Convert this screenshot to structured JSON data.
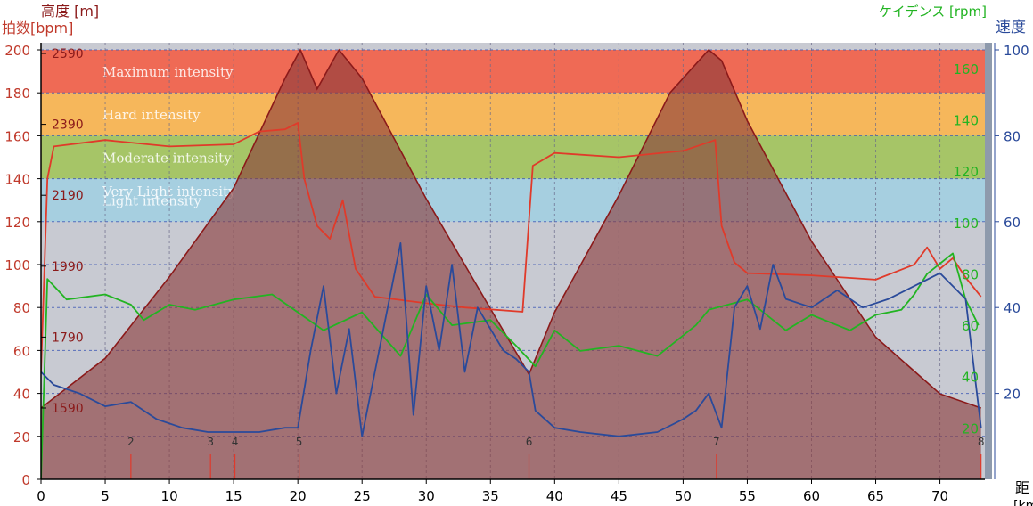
{
  "chart_data": {
    "type": "area",
    "axes": {
      "hr": {
        "label": "拍数[bpm]",
        "color": "#c0392b",
        "ticks": [
          0,
          20,
          40,
          60,
          80,
          100,
          120,
          140,
          160,
          180,
          200
        ],
        "range": [
          0,
          200
        ]
      },
      "alt": {
        "label": "高度 [m]",
        "color": "#8b1a1a",
        "ticks": [
          1590,
          1790,
          1990,
          2190,
          2390,
          2590
        ]
      },
      "cad": {
        "label": "ケイデンス [rpm]",
        "color": "#22b422",
        "ticks": [
          20,
          40,
          60,
          80,
          100,
          120,
          140,
          160
        ],
        "range": [
          0,
          170
        ]
      },
      "spd": {
        "label": "速度",
        "color": "#2a4a9a",
        "ticks": [
          20,
          40,
          60,
          80,
          100
        ],
        "range": [
          0,
          100
        ]
      },
      "dist": {
        "label": "距",
        "label2": "[km]",
        "ticks": [
          0,
          5,
          10,
          15,
          20,
          25,
          30,
          35,
          40,
          45,
          50,
          55,
          60,
          65,
          70
        ],
        "range": [
          0,
          73.5
        ]
      }
    },
    "zones": [
      {
        "name": "Maximum intensity",
        "from": 180,
        "to": 200,
        "color": "#ef6a55"
      },
      {
        "name": "Hard intensity",
        "from": 160,
        "to": 180,
        "color": "#f6b75b"
      },
      {
        "name": "Moderate intensity",
        "from": 140,
        "to": 160,
        "color": "#a6c567"
      },
      {
        "name": "Light intensity",
        "from": 120,
        "to": 140,
        "color": "#a6cfe0"
      },
      {
        "name": "Very Light intensity",
        "from": 0,
        "to": 120,
        "color": "#c8cad2"
      }
    ],
    "markers": [
      {
        "label": "2",
        "x": 7.0
      },
      {
        "label": "3",
        "x": 13.2
      },
      {
        "label": "4",
        "x": 15.1
      },
      {
        "label": "5",
        "x": 20.1
      },
      {
        "label": "6",
        "x": 38.0
      },
      {
        "label": "7",
        "x": 52.6
      },
      {
        "label": "8",
        "x": 73.2
      }
    ],
    "series": [
      {
        "name": "高度",
        "axis": "alt",
        "color": "#8b1a1a",
        "fill": "#8b3a3a",
        "x": [
          0,
          5,
          10,
          15,
          19,
          20.2,
          21.5,
          23.2,
          25,
          30,
          35,
          38,
          40,
          45,
          49,
          52,
          53,
          55,
          60,
          65,
          70,
          73.2
        ],
        "y": [
          1590,
          1730,
          1960,
          2210,
          2520,
          2600,
          2490,
          2600,
          2520,
          2180,
          1870,
          1685,
          1860,
          2190,
          2480,
          2600,
          2570,
          2400,
          2060,
          1790,
          1630,
          1590
        ]
      },
      {
        "name": "拍数",
        "axis": "hr",
        "color": "#e03a2a",
        "x": [
          0,
          0.5,
          1,
          5,
          10,
          15,
          17,
          19,
          20,
          20.5,
          21.5,
          22.5,
          23.5,
          24.5,
          26,
          30,
          33,
          37.5,
          38.3,
          40,
          45,
          50,
          52.5,
          53,
          54,
          55,
          60,
          65,
          68,
          69,
          70,
          71,
          72,
          73.2
        ],
        "y": [
          50,
          140,
          155,
          158,
          155,
          156,
          162,
          163,
          166,
          140,
          118,
          112,
          130,
          98,
          85,
          82,
          80,
          78,
          146,
          152,
          150,
          153,
          158,
          118,
          101,
          96,
          95,
          93,
          100,
          108,
          98,
          103,
          94,
          85
        ]
      },
      {
        "name": "ケイデンス",
        "axis": "cad",
        "color": "#22b422",
        "x": [
          0,
          0.5,
          2,
          5,
          7,
          8,
          10,
          12,
          15,
          18,
          20,
          22,
          25,
          28,
          30,
          32,
          35,
          37,
          38.5,
          40,
          42,
          45,
          48,
          51,
          52,
          55,
          58,
          60,
          63,
          65,
          67,
          68,
          69,
          71,
          72,
          73
        ],
        "y": [
          0,
          78,
          70,
          72,
          68,
          62,
          68,
          66,
          70,
          72,
          65,
          58,
          65,
          48,
          72,
          60,
          62,
          52,
          44,
          58,
          50,
          52,
          48,
          60,
          66,
          70,
          58,
          64,
          58,
          64,
          66,
          72,
          80,
          88,
          70,
          60
        ]
      },
      {
        "name": "速度",
        "axis": "spd",
        "color": "#2a4a9a",
        "x": [
          0,
          1,
          3,
          5,
          7,
          9,
          11,
          13,
          15,
          17,
          19,
          20,
          21,
          22,
          23,
          24,
          25,
          26,
          27,
          28,
          29,
          30,
          31,
          32,
          33,
          34,
          35,
          36,
          37,
          38,
          38.5,
          40,
          42,
          45,
          48,
          50,
          51,
          52,
          53,
          54,
          55,
          56,
          57,
          58,
          60,
          62,
          64,
          66,
          68,
          70,
          72,
          73.2
        ],
        "y": [
          25,
          22,
          20,
          17,
          18,
          14,
          12,
          11,
          11,
          11,
          12,
          12,
          30,
          45,
          20,
          35,
          10,
          25,
          40,
          55,
          15,
          45,
          30,
          50,
          25,
          40,
          35,
          30,
          28,
          25,
          16,
          12,
          11,
          10,
          11,
          14,
          16,
          20,
          12,
          40,
          45,
          35,
          50,
          42,
          40,
          44,
          40,
          42,
          45,
          48,
          42,
          12
        ]
      }
    ]
  }
}
